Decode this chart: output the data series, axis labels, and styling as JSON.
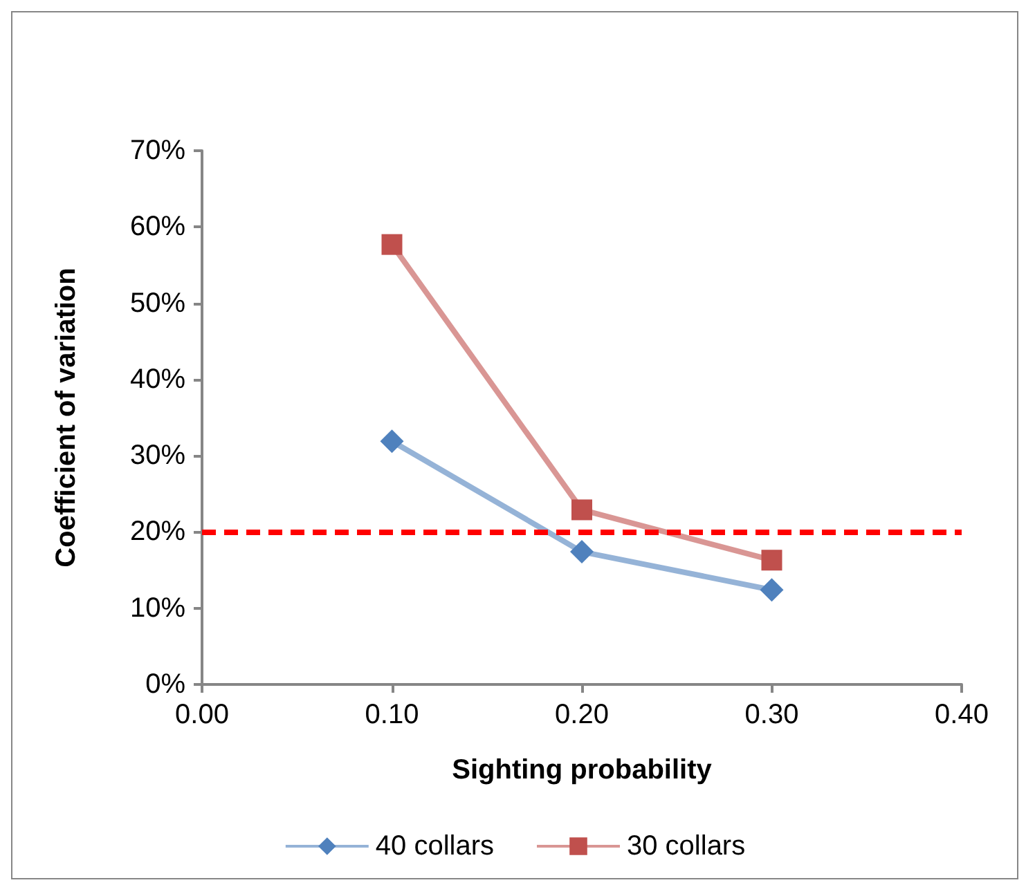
{
  "chart_data": {
    "type": "line",
    "xlabel": "Sighting probability",
    "ylabel": "Coefficient of variation",
    "x": [
      0.1,
      0.2,
      0.3
    ],
    "series": [
      {
        "name": "40 collars",
        "color": "#4f81bd",
        "marker": "diamond",
        "values": [
          31.9,
          17.4,
          12.4
        ]
      },
      {
        "name": "30 collars",
        "color": "#c0504d",
        "marker": "square",
        "values": [
          57.7,
          22.9,
          16.3
        ]
      }
    ],
    "xlim": [
      0,
      0.4
    ],
    "xticks": [
      {
        "value": 0,
        "label": "0.00"
      },
      {
        "value": 0.1,
        "label": "0.10"
      },
      {
        "value": 0.2,
        "label": "0.20"
      },
      {
        "value": 0.3,
        "label": "0.30"
      },
      {
        "value": 0.4,
        "label": "0.40"
      }
    ],
    "ylim": [
      0,
      70
    ],
    "yticks": [
      {
        "value": 0,
        "label": "0%"
      },
      {
        "value": 10,
        "label": "10%"
      },
      {
        "value": 20,
        "label": "20%"
      },
      {
        "value": 30,
        "label": "30%"
      },
      {
        "value": 40,
        "label": "40%"
      },
      {
        "value": 50,
        "label": "50%"
      },
      {
        "value": 60,
        "label": "60%"
      },
      {
        "value": 70,
        "label": "70%"
      }
    ],
    "ref_lines": [
      {
        "axis": "y",
        "value": 20,
        "color": "#ff0000",
        "line_style": "dashed"
      }
    ],
    "grid": false,
    "legend": "bottom"
  }
}
